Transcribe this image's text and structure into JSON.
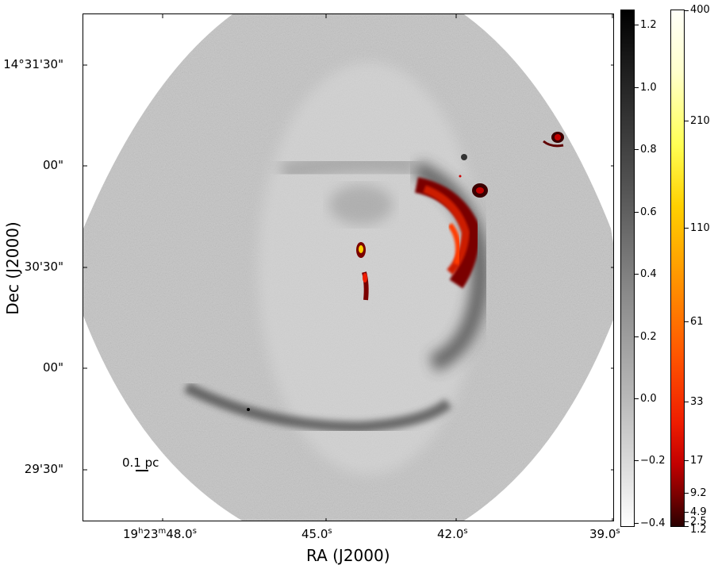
{
  "figure": {
    "x_axis": {
      "title": "RA (J2000)",
      "ticks": [
        {
          "label_hms": [
            "19",
            "h",
            "23",
            "m",
            "48.0",
            "s"
          ]
        },
        {
          "label": "45.0",
          "sup": "s"
        },
        {
          "label": "42.0",
          "sup": "s"
        },
        {
          "label": "39.0",
          "sup": "s"
        }
      ]
    },
    "y_axis": {
      "title": "Dec (J2000)",
      "ticks": [
        "14°31'30\"",
        "00\"",
        "30'30\"",
        "00\"",
        "29'30\""
      ]
    },
    "scale_bar": {
      "label": "0.1 pc"
    },
    "colorbar_gray": {
      "ticks": [
        "1.2",
        "1.0",
        "0.8",
        "0.6",
        "0.4",
        "0.2",
        "0.0",
        "−0.2",
        "−0.4"
      ],
      "colors": [
        "#000000",
        "#ffffff"
      ]
    },
    "colorbar_heat": {
      "ticks": [
        "400",
        "210",
        "110",
        "61",
        "33",
        "17",
        "9.2",
        "4.9",
        "2.5",
        "1.2"
      ],
      "colormap": "hot"
    }
  }
}
